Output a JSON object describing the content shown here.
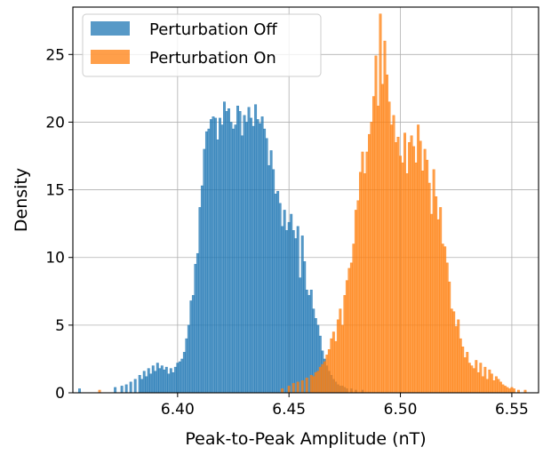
{
  "chart_data": {
    "type": "histogram",
    "title": "",
    "xlabel": "Peak-to-Peak Amplitude (nT)",
    "ylabel": "Density",
    "xlim": [
      6.353,
      6.562
    ],
    "ylim": [
      0,
      28.5
    ],
    "xticks": [
      6.4,
      6.45,
      6.5,
      6.55
    ],
    "xtick_labels": [
      "6.40",
      "6.45",
      "6.50",
      "6.55"
    ],
    "yticks": [
      0,
      5,
      10,
      15,
      20,
      25
    ],
    "ytick_labels": [
      "0",
      "5",
      "10",
      "15",
      "20",
      "25"
    ],
    "grid": true,
    "legend_position": "upper-left",
    "bin_width": 0.001,
    "series": [
      {
        "name": "Perturbation Off",
        "color": "#1f77b4",
        "opacity": 0.75,
        "bins": [
          {
            "x": 6.356,
            "y": 0.3
          },
          {
            "x": 6.372,
            "y": 0.4
          },
          {
            "x": 6.375,
            "y": 0.5
          },
          {
            "x": 6.377,
            "y": 0.6
          },
          {
            "x": 6.379,
            "y": 0.8
          },
          {
            "x": 6.381,
            "y": 1.0
          },
          {
            "x": 6.383,
            "y": 1.3
          },
          {
            "x": 6.384,
            "y": 1.0
          },
          {
            "x": 6.385,
            "y": 1.6
          },
          {
            "x": 6.386,
            "y": 1.2
          },
          {
            "x": 6.387,
            "y": 1.8
          },
          {
            "x": 6.388,
            "y": 1.4
          },
          {
            "x": 6.389,
            "y": 2.0
          },
          {
            "x": 6.39,
            "y": 1.6
          },
          {
            "x": 6.391,
            "y": 2.2
          },
          {
            "x": 6.392,
            "y": 1.8
          },
          {
            "x": 6.393,
            "y": 2.0
          },
          {
            "x": 6.394,
            "y": 1.7
          },
          {
            "x": 6.395,
            "y": 1.9
          },
          {
            "x": 6.396,
            "y": 1.4
          },
          {
            "x": 6.397,
            "y": 1.8
          },
          {
            "x": 6.398,
            "y": 1.5
          },
          {
            "x": 6.399,
            "y": 1.9
          },
          {
            "x": 6.4,
            "y": 2.2
          },
          {
            "x": 6.401,
            "y": 2.3
          },
          {
            "x": 6.402,
            "y": 2.5
          },
          {
            "x": 6.403,
            "y": 3.0
          },
          {
            "x": 6.404,
            "y": 4.0
          },
          {
            "x": 6.405,
            "y": 5.0
          },
          {
            "x": 6.406,
            "y": 6.8
          },
          {
            "x": 6.407,
            "y": 7.2
          },
          {
            "x": 6.408,
            "y": 9.5
          },
          {
            "x": 6.409,
            "y": 10.3
          },
          {
            "x": 6.41,
            "y": 13.7
          },
          {
            "x": 6.411,
            "y": 15.3
          },
          {
            "x": 6.412,
            "y": 18.0
          },
          {
            "x": 6.413,
            "y": 19.3
          },
          {
            "x": 6.414,
            "y": 19.5
          },
          {
            "x": 6.415,
            "y": 20.2
          },
          {
            "x": 6.416,
            "y": 20.4
          },
          {
            "x": 6.417,
            "y": 20.3
          },
          {
            "x": 6.418,
            "y": 18.7
          },
          {
            "x": 6.419,
            "y": 20.3
          },
          {
            "x": 6.42,
            "y": 19.8
          },
          {
            "x": 6.421,
            "y": 21.5
          },
          {
            "x": 6.422,
            "y": 20.8
          },
          {
            "x": 6.423,
            "y": 21.0
          },
          {
            "x": 6.424,
            "y": 20.0
          },
          {
            "x": 6.425,
            "y": 19.5
          },
          {
            "x": 6.426,
            "y": 19.8
          },
          {
            "x": 6.427,
            "y": 21.2
          },
          {
            "x": 6.428,
            "y": 20.8
          },
          {
            "x": 6.429,
            "y": 19.0
          },
          {
            "x": 6.43,
            "y": 20.5
          },
          {
            "x": 6.431,
            "y": 20.0
          },
          {
            "x": 6.432,
            "y": 21.1
          },
          {
            "x": 6.433,
            "y": 20.3
          },
          {
            "x": 6.434,
            "y": 19.7
          },
          {
            "x": 6.435,
            "y": 21.3
          },
          {
            "x": 6.436,
            "y": 20.2
          },
          {
            "x": 6.437,
            "y": 19.9
          },
          {
            "x": 6.438,
            "y": 20.4
          },
          {
            "x": 6.439,
            "y": 19.5
          },
          {
            "x": 6.44,
            "y": 18.8
          },
          {
            "x": 6.441,
            "y": 16.8
          },
          {
            "x": 6.442,
            "y": 17.9
          },
          {
            "x": 6.443,
            "y": 16.5
          },
          {
            "x": 6.444,
            "y": 14.7
          },
          {
            "x": 6.445,
            "y": 14.9
          },
          {
            "x": 6.446,
            "y": 14.0
          },
          {
            "x": 6.447,
            "y": 12.3
          },
          {
            "x": 6.448,
            "y": 13.5
          },
          {
            "x": 6.449,
            "y": 12.0
          },
          {
            "x": 6.45,
            "y": 12.6
          },
          {
            "x": 6.451,
            "y": 13.2
          },
          {
            "x": 6.452,
            "y": 12.0
          },
          {
            "x": 6.453,
            "y": 11.4
          },
          {
            "x": 6.454,
            "y": 12.3
          },
          {
            "x": 6.455,
            "y": 8.5
          },
          {
            "x": 6.456,
            "y": 11.6
          },
          {
            "x": 6.457,
            "y": 9.7
          },
          {
            "x": 6.458,
            "y": 7.6
          },
          {
            "x": 6.459,
            "y": 7.2
          },
          {
            "x": 6.46,
            "y": 7.6
          },
          {
            "x": 6.461,
            "y": 6.2
          },
          {
            "x": 6.462,
            "y": 5.5
          },
          {
            "x": 6.463,
            "y": 5.0
          },
          {
            "x": 6.464,
            "y": 4.2
          },
          {
            "x": 6.465,
            "y": 3.1
          },
          {
            "x": 6.466,
            "y": 2.5
          },
          {
            "x": 6.467,
            "y": 2.0
          },
          {
            "x": 6.468,
            "y": 1.6
          },
          {
            "x": 6.469,
            "y": 1.3
          },
          {
            "x": 6.47,
            "y": 1.0
          },
          {
            "x": 6.471,
            "y": 0.8
          },
          {
            "x": 6.472,
            "y": 0.6
          },
          {
            "x": 6.473,
            "y": 0.5
          },
          {
            "x": 6.474,
            "y": 0.5
          },
          {
            "x": 6.475,
            "y": 0.4
          },
          {
            "x": 6.476,
            "y": 0.3
          },
          {
            "x": 6.478,
            "y": 0.3
          },
          {
            "x": 6.48,
            "y": 0.2
          },
          {
            "x": 6.483,
            "y": 0.2
          }
        ]
      },
      {
        "name": "Perturbation On",
        "color": "#ff7f0e",
        "opacity": 0.75,
        "bins": [
          {
            "x": 6.365,
            "y": 0.2
          },
          {
            "x": 6.447,
            "y": 0.3
          },
          {
            "x": 6.45,
            "y": 0.5
          },
          {
            "x": 6.452,
            "y": 0.7
          },
          {
            "x": 6.454,
            "y": 0.8
          },
          {
            "x": 6.456,
            "y": 0.9
          },
          {
            "x": 6.458,
            "y": 1.1
          },
          {
            "x": 6.46,
            "y": 1.3
          },
          {
            "x": 6.461,
            "y": 1.2
          },
          {
            "x": 6.462,
            "y": 1.5
          },
          {
            "x": 6.463,
            "y": 1.6
          },
          {
            "x": 6.464,
            "y": 1.9
          },
          {
            "x": 6.465,
            "y": 2.1
          },
          {
            "x": 6.466,
            "y": 2.3
          },
          {
            "x": 6.467,
            "y": 2.8
          },
          {
            "x": 6.468,
            "y": 3.2
          },
          {
            "x": 6.469,
            "y": 4.0
          },
          {
            "x": 6.47,
            "y": 4.5
          },
          {
            "x": 6.471,
            "y": 3.8
          },
          {
            "x": 6.472,
            "y": 5.4
          },
          {
            "x": 6.473,
            "y": 6.2
          },
          {
            "x": 6.474,
            "y": 5.0
          },
          {
            "x": 6.475,
            "y": 7.2
          },
          {
            "x": 6.476,
            "y": 8.3
          },
          {
            "x": 6.477,
            "y": 9.2
          },
          {
            "x": 6.478,
            "y": 9.6
          },
          {
            "x": 6.479,
            "y": 11.0
          },
          {
            "x": 6.48,
            "y": 13.5
          },
          {
            "x": 6.481,
            "y": 14.2
          },
          {
            "x": 6.482,
            "y": 16.3
          },
          {
            "x": 6.483,
            "y": 17.8
          },
          {
            "x": 6.484,
            "y": 16.2
          },
          {
            "x": 6.485,
            "y": 17.8
          },
          {
            "x": 6.486,
            "y": 19.1
          },
          {
            "x": 6.487,
            "y": 20.0
          },
          {
            "x": 6.488,
            "y": 21.9
          },
          {
            "x": 6.489,
            "y": 24.9
          },
          {
            "x": 6.49,
            "y": 21.2
          },
          {
            "x": 6.491,
            "y": 28.0
          },
          {
            "x": 6.492,
            "y": 22.8
          },
          {
            "x": 6.493,
            "y": 26.0
          },
          {
            "x": 6.494,
            "y": 23.5
          },
          {
            "x": 6.495,
            "y": 21.5
          },
          {
            "x": 6.496,
            "y": 19.8
          },
          {
            "x": 6.497,
            "y": 20.5
          },
          {
            "x": 6.498,
            "y": 18.5
          },
          {
            "x": 6.499,
            "y": 18.9
          },
          {
            "x": 6.5,
            "y": 17.5
          },
          {
            "x": 6.501,
            "y": 17.0
          },
          {
            "x": 6.502,
            "y": 19.2
          },
          {
            "x": 6.503,
            "y": 16.2
          },
          {
            "x": 6.504,
            "y": 18.5
          },
          {
            "x": 6.505,
            "y": 19.0
          },
          {
            "x": 6.506,
            "y": 18.2
          },
          {
            "x": 6.507,
            "y": 17.0
          },
          {
            "x": 6.508,
            "y": 19.8
          },
          {
            "x": 6.509,
            "y": 18.6
          },
          {
            "x": 6.51,
            "y": 16.4
          },
          {
            "x": 6.511,
            "y": 18.0
          },
          {
            "x": 6.512,
            "y": 17.2
          },
          {
            "x": 6.513,
            "y": 15.5
          },
          {
            "x": 6.514,
            "y": 13.2
          },
          {
            "x": 6.515,
            "y": 16.5
          },
          {
            "x": 6.516,
            "y": 14.5
          },
          {
            "x": 6.517,
            "y": 12.8
          },
          {
            "x": 6.518,
            "y": 13.7
          },
          {
            "x": 6.519,
            "y": 11.0
          },
          {
            "x": 6.52,
            "y": 10.8
          },
          {
            "x": 6.521,
            "y": 9.6
          },
          {
            "x": 6.522,
            "y": 8.2
          },
          {
            "x": 6.523,
            "y": 6.2
          },
          {
            "x": 6.524,
            "y": 6.0
          },
          {
            "x": 6.525,
            "y": 4.9
          },
          {
            "x": 6.526,
            "y": 5.4
          },
          {
            "x": 6.527,
            "y": 4.0
          },
          {
            "x": 6.528,
            "y": 3.4
          },
          {
            "x": 6.529,
            "y": 2.6
          },
          {
            "x": 6.53,
            "y": 3.0
          },
          {
            "x": 6.531,
            "y": 2.2
          },
          {
            "x": 6.532,
            "y": 2.0
          },
          {
            "x": 6.533,
            "y": 1.8
          },
          {
            "x": 6.534,
            "y": 2.4
          },
          {
            "x": 6.535,
            "y": 1.5
          },
          {
            "x": 6.536,
            "y": 2.2
          },
          {
            "x": 6.537,
            "y": 1.2
          },
          {
            "x": 6.538,
            "y": 1.9
          },
          {
            "x": 6.539,
            "y": 1.0
          },
          {
            "x": 6.54,
            "y": 1.7
          },
          {
            "x": 6.541,
            "y": 1.4
          },
          {
            "x": 6.542,
            "y": 0.9
          },
          {
            "x": 6.543,
            "y": 1.2
          },
          {
            "x": 6.544,
            "y": 1.0
          },
          {
            "x": 6.545,
            "y": 0.8
          },
          {
            "x": 6.546,
            "y": 0.6
          },
          {
            "x": 6.547,
            "y": 0.5
          },
          {
            "x": 6.548,
            "y": 0.4
          },
          {
            "x": 6.549,
            "y": 0.3
          },
          {
            "x": 6.55,
            "y": 0.4
          },
          {
            "x": 6.551,
            "y": 0.3
          },
          {
            "x": 6.553,
            "y": 0.2
          },
          {
            "x": 6.556,
            "y": 0.2
          }
        ]
      }
    ]
  }
}
